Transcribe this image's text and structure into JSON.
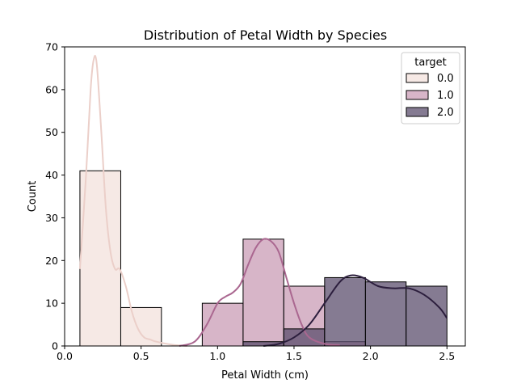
{
  "chart_data": {
    "type": "bar",
    "title": "Distribution of Petal Width by Species",
    "xlabel": "Petal Width (cm)",
    "ylabel": "Count",
    "xlim": [
      -0.0,
      2.62
    ],
    "ylim": [
      0,
      70
    ],
    "xticks": [
      0.0,
      0.5,
      1.0,
      1.5,
      2.0,
      2.5
    ],
    "xtick_labels": [
      "0.0",
      "0.5",
      "1.0",
      "1.5",
      "2.0",
      "2.5"
    ],
    "yticks": [
      0,
      10,
      20,
      30,
      40,
      50,
      60,
      70
    ],
    "ytick_labels": [
      "0",
      "10",
      "20",
      "30",
      "40",
      "50",
      "60",
      "70"
    ],
    "bin_edges": [
      0.1,
      0.367,
      0.633,
      0.9,
      1.167,
      1.433,
      1.7,
      1.967,
      2.233,
      2.5
    ],
    "grid": false,
    "legend": {
      "title": "target",
      "placement": "top-right"
    },
    "series": [
      {
        "name": "0.0",
        "color": "#f3e1dc",
        "line_color": "#ebcfc9",
        "counts": [
          41,
          9,
          0,
          0,
          0,
          0,
          0,
          0,
          0
        ],
        "kde": [
          [
            0.1,
            18
          ],
          [
            0.14,
            40
          ],
          [
            0.17,
            60
          ],
          [
            0.19,
            67
          ],
          [
            0.21,
            66
          ],
          [
            0.24,
            50
          ],
          [
            0.27,
            32
          ],
          [
            0.3,
            22
          ],
          [
            0.33,
            18
          ],
          [
            0.36,
            18
          ],
          [
            0.4,
            14
          ],
          [
            0.44,
            8
          ],
          [
            0.48,
            4
          ],
          [
            0.52,
            2
          ],
          [
            0.56,
            1.5
          ],
          [
            0.6,
            1
          ],
          [
            0.7,
            0.3
          ],
          [
            0.8,
            0
          ]
        ]
      },
      {
        "name": "1.0",
        "color": "#c99cb5",
        "line_color": "#aa6790",
        "counts": [
          0,
          0,
          0,
          10,
          25,
          14,
          1,
          0,
          0
        ],
        "kde": [
          [
            0.75,
            0
          ],
          [
            0.85,
            1
          ],
          [
            0.93,
            5
          ],
          [
            1.0,
            10
          ],
          [
            1.05,
            11.5
          ],
          [
            1.1,
            12.5
          ],
          [
            1.15,
            14.5
          ],
          [
            1.2,
            19
          ],
          [
            1.25,
            23
          ],
          [
            1.3,
            25
          ],
          [
            1.35,
            24.5
          ],
          [
            1.4,
            22
          ],
          [
            1.45,
            16
          ],
          [
            1.5,
            10
          ],
          [
            1.55,
            5
          ],
          [
            1.6,
            2
          ],
          [
            1.7,
            0.5
          ],
          [
            1.8,
            0.2
          ]
        ]
      },
      {
        "name": "2.0",
        "color": "#5c4f6d",
        "line_color": "#2c1e3d",
        "counts": [
          0,
          0,
          0,
          0,
          1,
          4,
          16,
          15,
          14
        ],
        "kde": [
          [
            1.3,
            0
          ],
          [
            1.4,
            0.5
          ],
          [
            1.5,
            2
          ],
          [
            1.6,
            5
          ],
          [
            1.7,
            10
          ],
          [
            1.8,
            15
          ],
          [
            1.87,
            16.5
          ],
          [
            1.95,
            16
          ],
          [
            2.05,
            14
          ],
          [
            2.15,
            13.5
          ],
          [
            2.25,
            13.5
          ],
          [
            2.35,
            12
          ],
          [
            2.45,
            9
          ],
          [
            2.5,
            6.5
          ]
        ]
      }
    ]
  }
}
